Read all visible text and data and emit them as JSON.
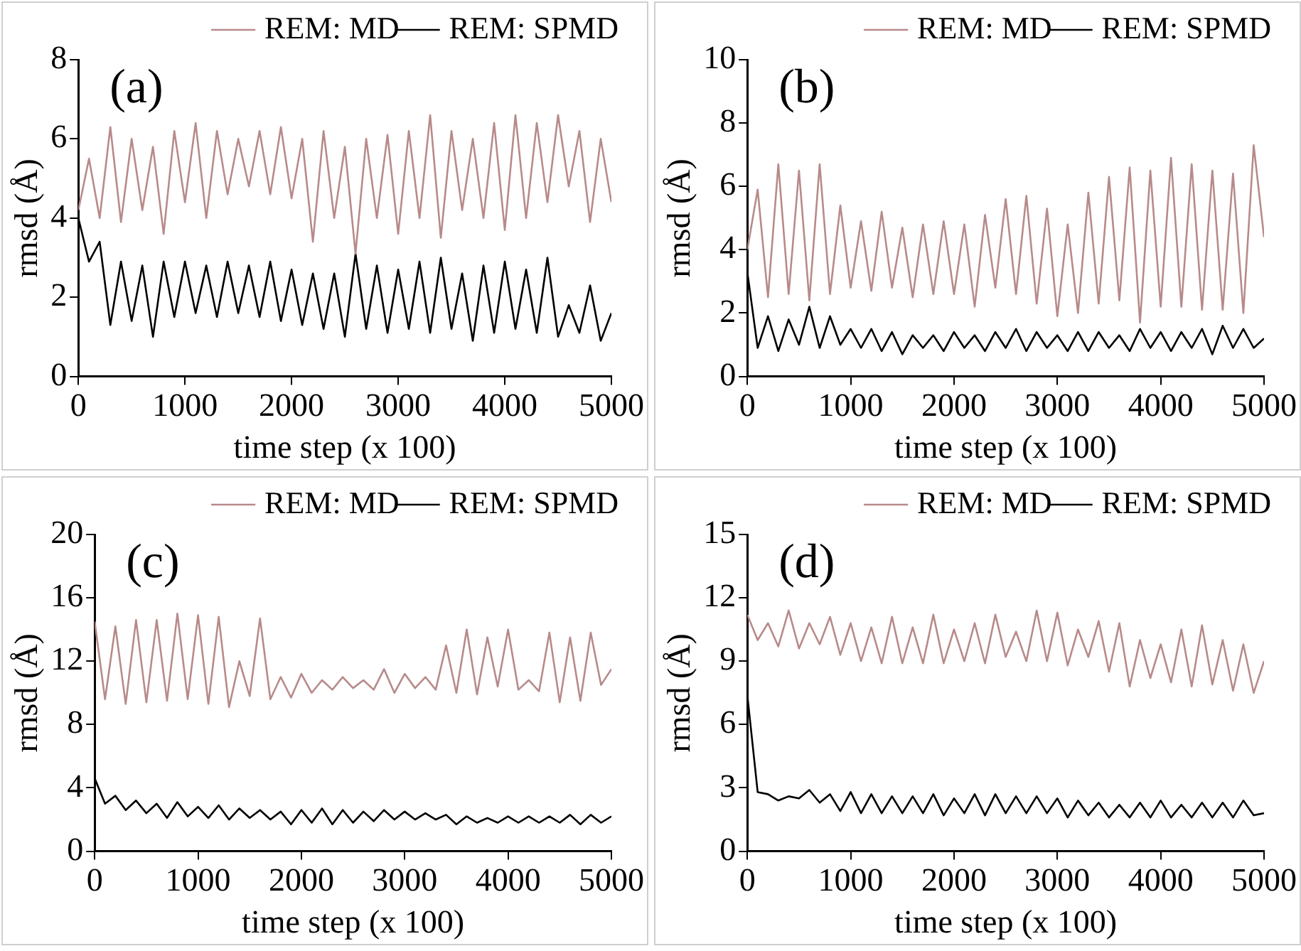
{
  "chart_data": [
    {
      "type": "line",
      "title": "(a)",
      "xlabel": "time step (x 100)",
      "ylabel": "rmsd (Å)",
      "legend": "top right",
      "marker": "none",
      "line_style": "solid",
      "x": [
        0,
        100,
        200,
        300,
        400,
        500,
        600,
        700,
        800,
        900,
        1000,
        1100,
        1200,
        1300,
        1400,
        1500,
        1600,
        1700,
        1800,
        1900,
        2000,
        2100,
        2200,
        2300,
        2400,
        2500,
        2600,
        2700,
        2800,
        2900,
        3000,
        3100,
        3200,
        3300,
        3400,
        3500,
        3600,
        3700,
        3800,
        3900,
        4000,
        4100,
        4200,
        4300,
        4400,
        4500,
        4600,
        4700,
        4800,
        4900,
        5000
      ],
      "xlim": [
        0,
        5000
      ],
      "xticks": [
        0,
        1000,
        2000,
        3000,
        4000,
        5000
      ],
      "ylim": [
        0,
        8
      ],
      "yticks": [
        0,
        2,
        4,
        6,
        8
      ],
      "series": [
        {
          "name": "REM: MD",
          "color": "#b88a8a",
          "values": [
            4.2,
            5.5,
            4.0,
            6.3,
            3.9,
            6.0,
            4.2,
            5.8,
            3.6,
            6.2,
            4.4,
            6.4,
            4.0,
            6.2,
            4.6,
            6.0,
            4.8,
            6.2,
            4.6,
            6.3,
            4.5,
            6.0,
            3.4,
            6.2,
            4.0,
            5.8,
            3.1,
            6.0,
            4.0,
            6.1,
            3.6,
            6.2,
            4.0,
            6.6,
            3.5,
            6.2,
            4.2,
            6.0,
            4.0,
            6.4,
            3.7,
            6.6,
            4.0,
            6.4,
            4.4,
            6.6,
            4.8,
            6.2,
            3.9,
            6.0,
            4.4
          ]
        },
        {
          "name": "REM: SPMD",
          "color": "#000000",
          "values": [
            4.0,
            2.9,
            3.4,
            1.3,
            2.9,
            1.4,
            2.8,
            1.0,
            2.9,
            1.5,
            2.9,
            1.6,
            2.8,
            1.5,
            2.9,
            1.6,
            2.8,
            1.5,
            2.9,
            1.4,
            2.7,
            1.3,
            2.6,
            1.2,
            2.6,
            1.0,
            3.1,
            1.2,
            2.8,
            1.1,
            2.7,
            1.2,
            2.9,
            1.1,
            3.0,
            1.2,
            2.6,
            0.9,
            2.8,
            1.1,
            2.9,
            1.2,
            2.7,
            1.1,
            3.0,
            1.0,
            1.8,
            1.1,
            2.3,
            0.9,
            1.6
          ]
        }
      ]
    },
    {
      "type": "line",
      "title": "(b)",
      "xlabel": "time step (x 100)",
      "ylabel": "rmsd (Å)",
      "legend": "top right",
      "marker": "none",
      "line_style": "solid",
      "x": [
        0,
        100,
        200,
        300,
        400,
        500,
        600,
        700,
        800,
        900,
        1000,
        1100,
        1200,
        1300,
        1400,
        1500,
        1600,
        1700,
        1800,
        1900,
        2000,
        2100,
        2200,
        2300,
        2400,
        2500,
        2600,
        2700,
        2800,
        2900,
        3000,
        3100,
        3200,
        3300,
        3400,
        3500,
        3600,
        3700,
        3800,
        3900,
        4000,
        4100,
        4200,
        4300,
        4400,
        4500,
        4600,
        4700,
        4800,
        4900,
        5000
      ],
      "xlim": [
        0,
        5000
      ],
      "xticks": [
        0,
        1000,
        2000,
        3000,
        4000,
        5000
      ],
      "ylim": [
        0,
        10
      ],
      "yticks": [
        0,
        2,
        4,
        6,
        8,
        10
      ],
      "series": [
        {
          "name": "REM: MD",
          "color": "#b88a8a",
          "values": [
            4.0,
            5.9,
            2.5,
            6.7,
            2.6,
            6.5,
            2.4,
            6.7,
            2.6,
            5.4,
            2.8,
            4.9,
            2.7,
            5.2,
            2.8,
            4.7,
            2.5,
            4.8,
            2.6,
            4.9,
            2.6,
            4.8,
            2.2,
            5.1,
            2.8,
            5.6,
            2.6,
            5.7,
            2.3,
            5.3,
            1.9,
            4.8,
            2.0,
            5.8,
            2.3,
            6.3,
            2.4,
            6.6,
            1.7,
            6.5,
            2.2,
            6.9,
            2.2,
            6.7,
            2.1,
            6.5,
            2.1,
            6.4,
            2.0,
            7.3,
            4.4
          ]
        },
        {
          "name": "REM: SPMD",
          "color": "#000000",
          "values": [
            3.3,
            0.9,
            1.9,
            0.8,
            1.8,
            1.0,
            2.2,
            0.9,
            1.9,
            1.0,
            1.5,
            0.9,
            1.5,
            0.8,
            1.4,
            0.7,
            1.3,
            0.9,
            1.3,
            0.8,
            1.4,
            0.9,
            1.3,
            0.8,
            1.4,
            0.9,
            1.5,
            0.8,
            1.4,
            0.9,
            1.3,
            0.8,
            1.4,
            0.8,
            1.4,
            0.9,
            1.3,
            0.8,
            1.5,
            0.9,
            1.4,
            0.8,
            1.4,
            0.9,
            1.5,
            0.7,
            1.6,
            0.9,
            1.5,
            0.9,
            1.2
          ]
        }
      ]
    },
    {
      "type": "line",
      "title": "(c)",
      "xlabel": "time step (x 100)",
      "ylabel": "rmsd (Å)",
      "legend": "top right",
      "marker": "none",
      "line_style": "solid",
      "x": [
        0,
        100,
        200,
        300,
        400,
        500,
        600,
        700,
        800,
        900,
        1000,
        1100,
        1200,
        1300,
        1400,
        1500,
        1600,
        1700,
        1800,
        1900,
        2000,
        2100,
        2200,
        2300,
        2400,
        2500,
        2600,
        2700,
        2800,
        2900,
        3000,
        3100,
        3200,
        3300,
        3400,
        3500,
        3600,
        3700,
        3800,
        3900,
        4000,
        4100,
        4200,
        4300,
        4400,
        4500,
        4600,
        4700,
        4800,
        4900,
        5000
      ],
      "xlim": [
        0,
        5000
      ],
      "xticks": [
        0,
        1000,
        2000,
        3000,
        4000,
        5000
      ],
      "ylim": [
        0,
        20
      ],
      "yticks": [
        0,
        4,
        8,
        12,
        16,
        20
      ],
      "series": [
        {
          "name": "REM: MD",
          "color": "#b88a8a",
          "values": [
            14.5,
            9.6,
            14.2,
            9.3,
            14.6,
            9.4,
            14.6,
            9.5,
            15.0,
            9.6,
            14.9,
            9.3,
            14.8,
            9.1,
            12.0,
            9.8,
            14.7,
            9.6,
            11.0,
            9.7,
            11.2,
            10.0,
            10.8,
            10.2,
            11.0,
            10.3,
            10.8,
            10.2,
            11.5,
            10.0,
            11.2,
            10.3,
            11.0,
            10.2,
            13.0,
            10.0,
            14.0,
            9.9,
            13.5,
            10.4,
            14.0,
            10.2,
            10.8,
            10.1,
            13.8,
            9.4,
            13.5,
            9.5,
            13.8,
            10.5,
            11.5
          ]
        },
        {
          "name": "REM: SPMD",
          "color": "#000000",
          "values": [
            4.6,
            3.0,
            3.5,
            2.6,
            3.2,
            2.4,
            3.0,
            2.1,
            3.1,
            2.2,
            2.8,
            2.1,
            2.9,
            2.0,
            2.7,
            2.1,
            2.6,
            2.0,
            2.5,
            1.7,
            2.6,
            1.8,
            2.7,
            1.7,
            2.6,
            1.8,
            2.5,
            1.9,
            2.6,
            2.0,
            2.5,
            2.0,
            2.4,
            2.0,
            2.3,
            1.7,
            2.2,
            1.8,
            2.1,
            1.8,
            2.2,
            1.8,
            2.2,
            1.8,
            2.2,
            1.8,
            2.3,
            1.7,
            2.3,
            1.8,
            2.2
          ]
        }
      ]
    },
    {
      "type": "line",
      "title": "(d)",
      "xlabel": "time step (x 100)",
      "ylabel": "rmsd (Å)",
      "legend": "top right",
      "marker": "none",
      "line_style": "solid",
      "x": [
        0,
        100,
        200,
        300,
        400,
        500,
        600,
        700,
        800,
        900,
        1000,
        1100,
        1200,
        1300,
        1400,
        1500,
        1600,
        1700,
        1800,
        1900,
        2000,
        2100,
        2200,
        2300,
        2400,
        2500,
        2600,
        2700,
        2800,
        2900,
        3000,
        3100,
        3200,
        3300,
        3400,
        3500,
        3600,
        3700,
        3800,
        3900,
        4000,
        4100,
        4200,
        4300,
        4400,
        4500,
        4600,
        4700,
        4800,
        4900,
        5000
      ],
      "xlim": [
        0,
        5000
      ],
      "xticks": [
        0,
        1000,
        2000,
        3000,
        4000,
        5000
      ],
      "ylim": [
        0,
        15
      ],
      "yticks": [
        0,
        3,
        6,
        9,
        12,
        15
      ],
      "series": [
        {
          "name": "REM: MD",
          "color": "#b88a8a",
          "values": [
            11.2,
            10.0,
            10.8,
            9.7,
            11.4,
            9.6,
            10.8,
            9.8,
            11.1,
            9.3,
            10.8,
            9.0,
            10.6,
            8.9,
            11.1,
            8.9,
            10.6,
            8.9,
            11.2,
            8.9,
            10.5,
            9.0,
            10.8,
            8.9,
            11.2,
            9.2,
            10.4,
            9.0,
            11.4,
            9.0,
            11.3,
            8.8,
            10.5,
            9.2,
            10.9,
            8.5,
            10.8,
            7.8,
            10.0,
            8.2,
            9.8,
            8.0,
            10.5,
            7.8,
            10.7,
            7.9,
            10.0,
            7.6,
            9.8,
            7.5,
            9.0
          ]
        },
        {
          "name": "REM: SPMD",
          "color": "#000000",
          "values": [
            7.4,
            2.8,
            2.7,
            2.4,
            2.6,
            2.5,
            2.9,
            2.3,
            2.7,
            1.9,
            2.8,
            1.8,
            2.7,
            1.8,
            2.6,
            1.8,
            2.6,
            1.8,
            2.7,
            1.7,
            2.5,
            1.8,
            2.7,
            1.7,
            2.7,
            1.8,
            2.6,
            1.8,
            2.6,
            1.8,
            2.5,
            1.6,
            2.4,
            1.7,
            2.3,
            1.6,
            2.2,
            1.6,
            2.3,
            1.6,
            2.4,
            1.6,
            2.2,
            1.6,
            2.3,
            1.6,
            2.3,
            1.6,
            2.4,
            1.7,
            1.8
          ]
        }
      ]
    }
  ]
}
